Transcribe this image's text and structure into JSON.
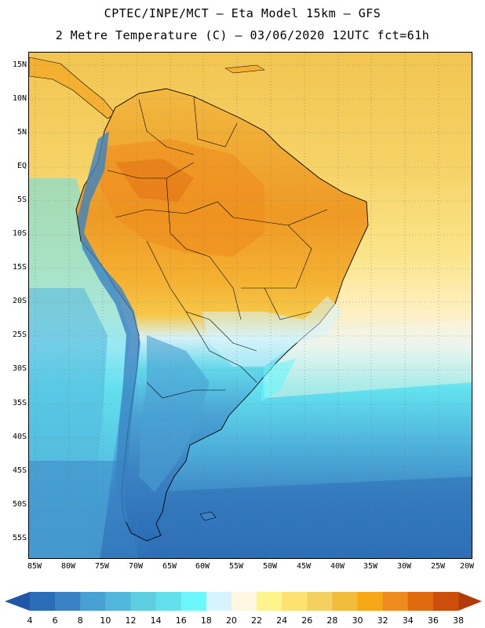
{
  "header": {
    "line1": "CPTEC/INPE/MCT –  Eta Model 15km – GFS",
    "line2": "2 Metre Temperature (C) – 03/06/2020 12UTC fct=61h"
  },
  "axes": {
    "lat_labels": [
      "15N",
      "10N",
      "5N",
      "EQ",
      "5S",
      "10S",
      "15S",
      "20S",
      "25S",
      "30S",
      "35S",
      "40S",
      "45S",
      "50S",
      "55S"
    ],
    "lon_labels": [
      "85W",
      "80W",
      "75W",
      "70W",
      "65W",
      "60W",
      "55W",
      "50W",
      "45W",
      "40W",
      "35W",
      "30W",
      "25W",
      "20W"
    ]
  },
  "colorbar": {
    "labels": [
      "4",
      "6",
      "8",
      "10",
      "12",
      "14",
      "16",
      "18",
      "20",
      "22",
      "24",
      "26",
      "28",
      "30",
      "32",
      "34",
      "36",
      "38"
    ],
    "colors": [
      "#2b6db6",
      "#3a82c3",
      "#49a0d2",
      "#52b6dc",
      "#5fcde0",
      "#62e0ec",
      "#6bf7fb",
      "#d6f4fb",
      "#fff6e2",
      "#fef48c",
      "#fbe271",
      "#f4d060",
      "#f2bd3a",
      "#f5a716",
      "#ee8a1e",
      "#e06a10",
      "#cc4e0a"
    ],
    "low_arrow_color": "#2256a8",
    "high_arrow_color": "#b23a0a"
  },
  "regions": {
    "ocean_north": "Warm Atlantic/Caribbean ~26-28C",
    "amazon": "Amazon basin ~30-34C",
    "andes": "Andes cordillera ~4-10C",
    "patagonia": "Patagonia ~6-12C",
    "southern_ocean": "Southern ocean ~6-10C"
  }
}
